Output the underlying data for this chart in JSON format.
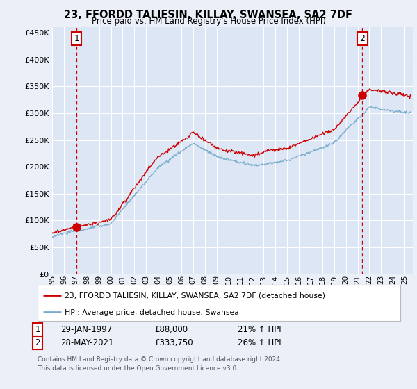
{
  "title": "23, FFORDD TALIESIN, KILLAY, SWANSEA, SA2 7DF",
  "subtitle": "Price paid vs. HM Land Registry's House Price Index (HPI)",
  "ylim": [
    0,
    460000
  ],
  "yticks": [
    0,
    50000,
    100000,
    150000,
    200000,
    250000,
    300000,
    350000,
    400000,
    450000
  ],
  "ytick_labels": [
    "£0",
    "£50K",
    "£100K",
    "£150K",
    "£200K",
    "£250K",
    "£300K",
    "£350K",
    "£400K",
    "£450K"
  ],
  "xlim_start": 1995.3,
  "xlim_end": 2025.7,
  "xticks": [
    1995,
    1996,
    1997,
    1998,
    1999,
    2000,
    2001,
    2002,
    2003,
    2004,
    2005,
    2006,
    2007,
    2008,
    2009,
    2010,
    2011,
    2012,
    2013,
    2014,
    2015,
    2016,
    2017,
    2018,
    2019,
    2020,
    2021,
    2022,
    2023,
    2024,
    2025
  ],
  "sale1_year": 1997.08,
  "sale1_price": 88000,
  "sale2_year": 2021.41,
  "sale2_price": 333750,
  "sale1_label": "29-JAN-1997",
  "sale1_amount": "£88,000",
  "sale1_hpi": "21% ↑ HPI",
  "sale2_label": "28-MAY-2021",
  "sale2_amount": "£333,750",
  "sale2_hpi": "26% ↑ HPI",
  "legend_line1": "23, FFORDD TALIESIN, KILLAY, SWANSEA, SA2 7DF (detached house)",
  "legend_line2": "HPI: Average price, detached house, Swansea",
  "footer1": "Contains HM Land Registry data © Crown copyright and database right 2024.",
  "footer2": "This data is licensed under the Open Government Licence v3.0.",
  "background_color": "#eaeff8",
  "plot_bg_color": "#dce6f5",
  "red_color": "#cc0000",
  "blue_color": "#7aadcc",
  "grid_color": "#ffffff"
}
